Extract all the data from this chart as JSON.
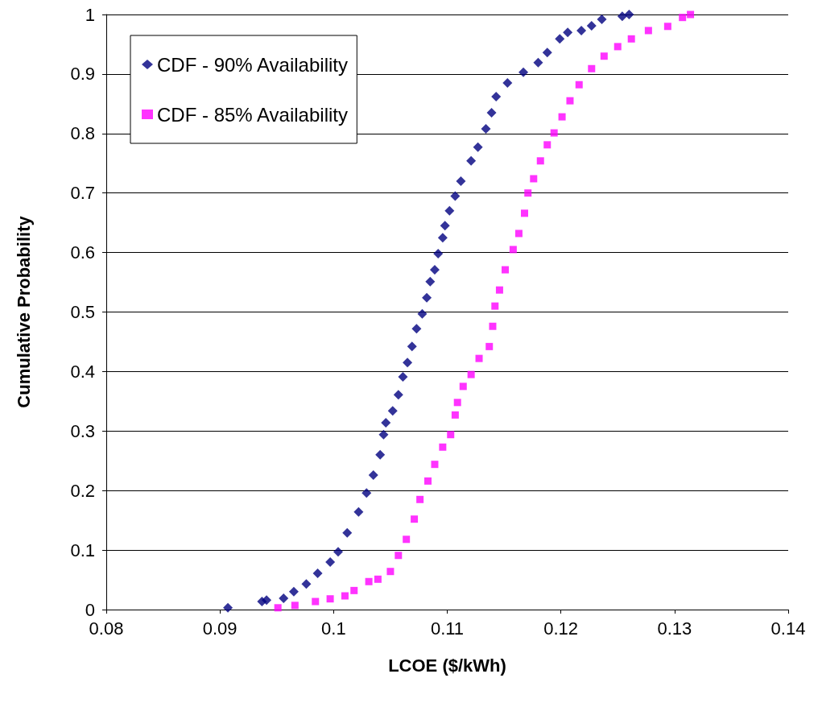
{
  "chart_data": {
    "type": "scatter",
    "xlabel": "LCOE ($/kWh)",
    "ylabel": "Cumulative Probability",
    "xlim": [
      0.08,
      0.14
    ],
    "xticks": [
      0.08,
      0.09,
      0.1,
      0.11,
      0.12,
      0.13,
      0.14
    ],
    "ylim": [
      0,
      1
    ],
    "yticks": [
      0,
      0.1,
      0.2,
      0.3,
      0.4,
      0.5,
      0.6,
      0.7,
      0.8,
      0.9,
      1
    ],
    "grid": "y",
    "legend": "top left",
    "series": [
      {
        "name": "CDF - 90% Availability",
        "color": "#000080",
        "marker": "diamond",
        "x": [
          0.0907,
          0.0937,
          0.0941,
          0.0956,
          0.0965,
          0.0976,
          0.0986,
          0.0997,
          0.1004,
          0.1012,
          0.1022,
          0.1029,
          0.1035,
          0.1041,
          0.1044,
          0.1046,
          0.1052,
          0.1057,
          0.1061,
          0.1065,
          0.1069,
          0.1073,
          0.1078,
          0.1082,
          0.1085,
          0.1089,
          0.1092,
          0.1096,
          0.1098,
          0.1102,
          0.1107,
          0.1112,
          0.1121,
          0.1127,
          0.1134,
          0.1139,
          0.1143,
          0.1153,
          0.1167,
          0.118,
          0.1188,
          0.1199,
          0.1206,
          0.1218,
          0.1227,
          0.1236,
          0.1254,
          0.126
        ],
        "values": [
          0.003,
          0.0135,
          0.016,
          0.019,
          0.03,
          0.043,
          0.061,
          0.08,
          0.097,
          0.129,
          0.164,
          0.196,
          0.226,
          0.26,
          0.294,
          0.314,
          0.334,
          0.361,
          0.391,
          0.415,
          0.442,
          0.472,
          0.497,
          0.524,
          0.551,
          0.571,
          0.598,
          0.625,
          0.645,
          0.67,
          0.695,
          0.72,
          0.754,
          0.777,
          0.808,
          0.835,
          0.862,
          0.885,
          0.903,
          0.919,
          0.936,
          0.959,
          0.97,
          0.973,
          0.981,
          0.992,
          0.997,
          1.0
        ]
      },
      {
        "name": "CDF - 85% Availability",
        "color": "#ff00ff",
        "marker": "square",
        "x": [
          0.0951,
          0.0966,
          0.0984,
          0.0997,
          0.101,
          0.1018,
          0.1031,
          0.1039,
          0.105,
          0.1057,
          0.1064,
          0.1071,
          0.1076,
          0.1083,
          0.1089,
          0.1096,
          0.1103,
          0.1107,
          0.1109,
          0.1114,
          0.1121,
          0.1128,
          0.1137,
          0.114,
          0.1142,
          0.1146,
          0.1151,
          0.1158,
          0.1163,
          0.1168,
          0.1171,
          0.1176,
          0.1182,
          0.1188,
          0.1194,
          0.1201,
          0.1208,
          0.1216,
          0.1227,
          0.1238,
          0.125,
          0.1262,
          0.1277,
          0.1294,
          0.1307,
          0.1314
        ],
        "values": [
          0.003,
          0.007,
          0.0135,
          0.018,
          0.023,
          0.032,
          0.047,
          0.051,
          0.064,
          0.091,
          0.118,
          0.152,
          0.185,
          0.216,
          0.244,
          0.273,
          0.294,
          0.327,
          0.348,
          0.375,
          0.395,
          0.422,
          0.442,
          0.476,
          0.51,
          0.537,
          0.571,
          0.605,
          0.632,
          0.666,
          0.7,
          0.724,
          0.754,
          0.781,
          0.801,
          0.828,
          0.855,
          0.882,
          0.909,
          0.93,
          0.946,
          0.959,
          0.973,
          0.98,
          0.995,
          1.0
        ]
      }
    ]
  }
}
